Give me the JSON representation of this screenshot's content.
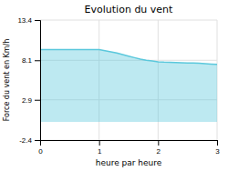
{
  "chart_data": {
    "type": "area",
    "title": "Evolution du vent",
    "x_label": "heure par heure",
    "y_label": "Force du vent en Km/h",
    "x": [
      0,
      0.1,
      0.2,
      0.3,
      0.4,
      0.5,
      0.6,
      0.7,
      0.8,
      0.9,
      1.0,
      1.1,
      1.2,
      1.3,
      1.4,
      1.5,
      1.6,
      1.7,
      1.8,
      1.9,
      2.0,
      2.1,
      2.2,
      2.3,
      2.4,
      2.5,
      2.6,
      2.7,
      2.8,
      2.9,
      3.0
    ],
    "values": [
      9.5,
      9.5,
      9.5,
      9.5,
      9.5,
      9.5,
      9.5,
      9.5,
      9.5,
      9.5,
      9.5,
      9.35,
      9.2,
      9.05,
      8.85,
      8.65,
      8.45,
      8.25,
      8.1,
      8.0,
      7.9,
      7.85,
      7.82,
      7.8,
      7.78,
      7.75,
      7.73,
      7.7,
      7.65,
      7.6,
      7.55
    ],
    "color": "#5bc8dc",
    "xlim": [
      0,
      3.0
    ],
    "ylim": [
      -2.4,
      13.4
    ],
    "xticks": [
      0,
      1,
      2,
      3
    ],
    "yticks": [
      -2.4,
      2.9,
      8.1,
      13.4
    ],
    "grid": true
  }
}
